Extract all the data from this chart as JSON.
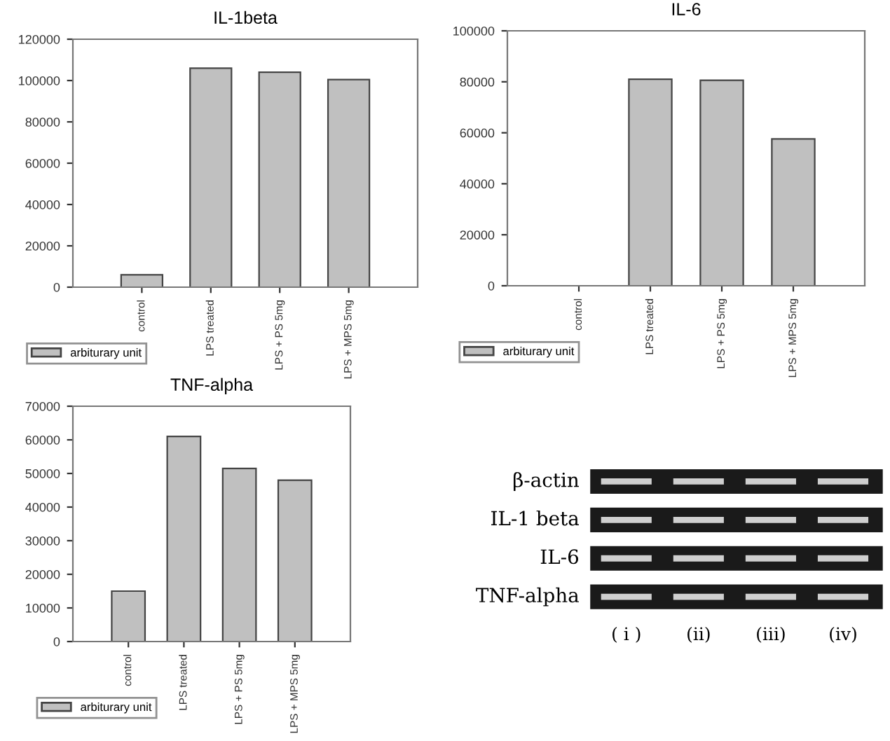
{
  "chart_data": [
    {
      "type": "bar",
      "title": "IL-1beta",
      "categories": [
        "control",
        "LPS treated",
        "LPS + PS 5mg",
        "LPS + MPS 5mg"
      ],
      "series": [
        {
          "name": "arbiturary unit",
          "color": "#c0c0c0",
          "values": [
            6000,
            106000,
            104000,
            100500
          ]
        }
      ],
      "ylim": [
        0,
        120000
      ],
      "yticks": [
        0,
        20000,
        40000,
        60000,
        80000,
        100000,
        120000
      ],
      "legend": "bottom left",
      "grid": false
    },
    {
      "type": "bar",
      "title": "IL-6",
      "categories": [
        "control",
        "LPS treated",
        "LPS + PS 5mg",
        "LPS + MPS 5mg"
      ],
      "series": [
        {
          "name": "arbiturary unit",
          "color": "#c0c0c0",
          "values": [
            0,
            81000,
            80600,
            57600
          ]
        }
      ],
      "ylim": [
        0,
        100000
      ],
      "yticks": [
        0,
        20000,
        40000,
        60000,
        80000,
        100000
      ],
      "legend": "bottom left",
      "grid": false
    },
    {
      "type": "bar",
      "title": "TNF-alpha",
      "categories": [
        "control",
        "LPS treated",
        "LPS + PS 5mg",
        "LPS + MPS 5mg"
      ],
      "series": [
        {
          "name": "arbiturary unit",
          "color": "#c0c0c0",
          "values": [
            15000,
            61000,
            51500,
            48000
          ]
        }
      ],
      "ylim": [
        0,
        70000
      ],
      "yticks": [
        0,
        10000,
        20000,
        30000,
        40000,
        50000,
        60000,
        70000
      ],
      "legend": "bottom left",
      "grid": false
    },
    {
      "type": "other",
      "categories": [
        "( i )",
        "(ii)",
        "(iii)",
        "(iv)"
      ],
      "y_categories": [
        "β-actin",
        "IL-1 beta",
        "IL-6",
        "TNF-alpha"
      ]
    }
  ]
}
